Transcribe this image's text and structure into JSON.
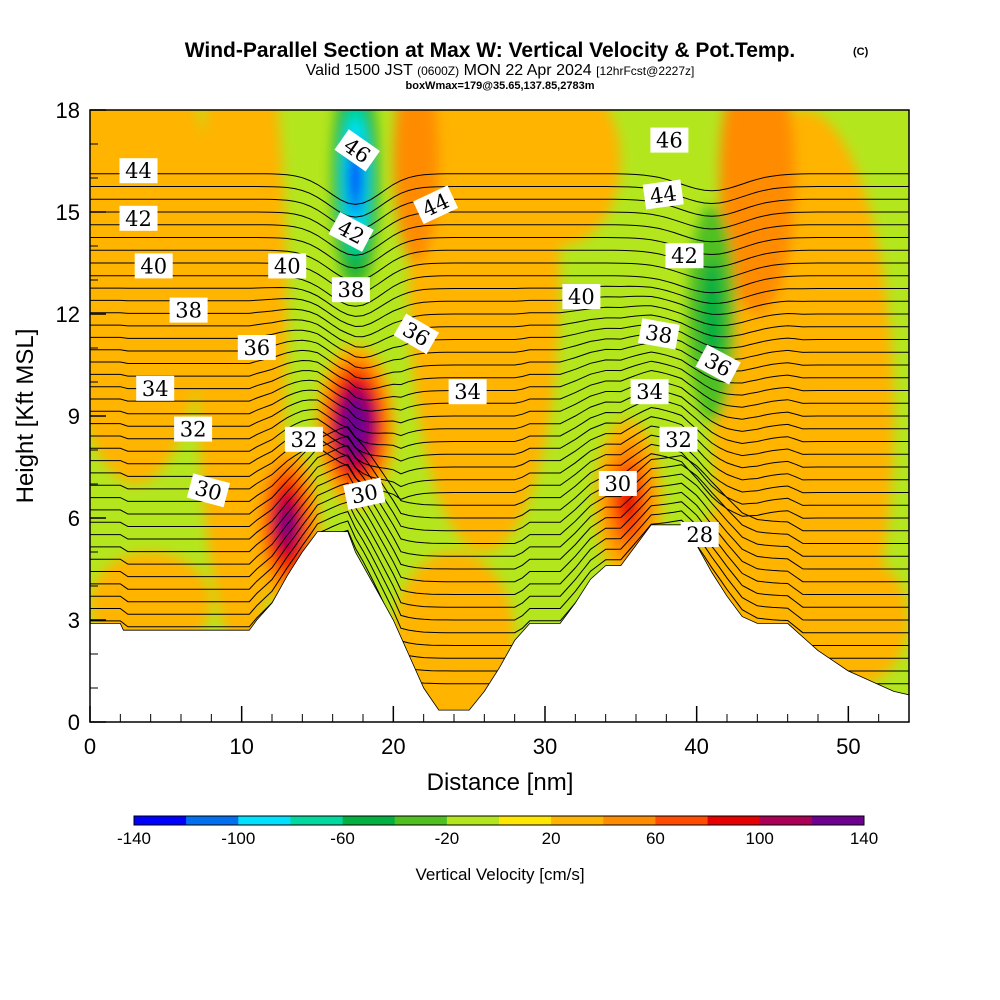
{
  "chart_data": {
    "type": "contour",
    "title": "Wind-Parallel Section at Max W: Vertical Velocity & Pot.Temp.",
    "copyright_mark": "(C)",
    "subtitle_parts": [
      "Valid 1500 JST",
      "(0600Z)",
      "MON 22 Apr 2024",
      "[12hrFcst@2227z]"
    ],
    "subtitle2": "boxWmax=179@35.65,137.85,2783m",
    "xlabel": "Distance [nm]",
    "ylabel": "Height [Kft MSL]",
    "xlim": [
      0,
      54
    ],
    "ylim": [
      0,
      18
    ],
    "xticks": [
      "0",
      "10",
      "20",
      "30",
      "40",
      "50"
    ],
    "yticks": [
      "0",
      "3",
      "6",
      "9",
      "12",
      "15",
      "18"
    ],
    "colorbar": {
      "label": "Vertical Velocity [cm/s]",
      "ticks": [
        "-140",
        "-100",
        "-60",
        "-20",
        "20",
        "60",
        "100",
        "140"
      ],
      "levels": [
        -140,
        -120,
        -100,
        -80,
        -60,
        -40,
        -20,
        0,
        20,
        40,
        60,
        80,
        100,
        120,
        140
      ],
      "colors": [
        "#0000ff",
        "#0070f0",
        "#00e0ff",
        "#00d8a0",
        "#00b040",
        "#50c020",
        "#b4e61e",
        "#ffe600",
        "#ffb400",
        "#ff8c00",
        "#ff4c00",
        "#e60000",
        "#aa0055",
        "#6e0090"
      ]
    },
    "terrain_kft": [
      [
        0,
        2.9
      ],
      [
        2,
        2.9
      ],
      [
        2.2,
        2.7
      ],
      [
        10.5,
        2.7
      ],
      [
        11,
        3.0
      ],
      [
        12,
        3.5
      ],
      [
        13,
        4.3
      ],
      [
        14,
        5.0
      ],
      [
        15,
        5.6
      ],
      [
        17,
        5.6
      ],
      [
        17.5,
        5.0
      ],
      [
        18,
        4.6
      ],
      [
        19,
        3.8
      ],
      [
        20,
        3.0
      ],
      [
        21,
        2.0
      ],
      [
        22,
        1.0
      ],
      [
        23,
        0.35
      ],
      [
        25,
        0.35
      ],
      [
        26,
        0.9
      ],
      [
        27,
        1.6
      ],
      [
        28,
        2.4
      ],
      [
        29,
        2.9
      ],
      [
        31,
        2.9
      ],
      [
        32,
        3.5
      ],
      [
        33,
        4.2
      ],
      [
        34,
        4.6
      ],
      [
        35,
        4.6
      ],
      [
        36,
        5.2
      ],
      [
        37,
        5.8
      ],
      [
        39,
        5.8
      ],
      [
        40,
        5.2
      ],
      [
        41,
        4.4
      ],
      [
        42,
        3.7
      ],
      [
        43,
        3.1
      ],
      [
        44,
        2.9
      ],
      [
        46,
        2.9
      ],
      [
        47,
        2.5
      ],
      [
        48,
        2.1
      ],
      [
        49,
        1.8
      ],
      [
        50,
        1.5
      ],
      [
        51,
        1.3
      ],
      [
        52,
        1.1
      ],
      [
        53,
        0.9
      ],
      [
        54,
        0.8
      ]
    ],
    "w_features": [
      {
        "name": "updraft_main",
        "x": 17.5,
        "y": 8.7,
        "w_cms": 179
      },
      {
        "name": "updraft_west",
        "x": 13,
        "y": 5.8,
        "w_cms": 120
      },
      {
        "name": "updraft_east",
        "x": 35.5,
        "y": 6.5,
        "w_cms": 80
      },
      {
        "name": "downdraft_upper",
        "x": 17.5,
        "y": 16,
        "w_cms": -120
      },
      {
        "name": "downdraft_east",
        "x": 41,
        "y": 12,
        "w_cms": -50
      }
    ],
    "theta_labels": [
      {
        "text": "44",
        "x": 3.2,
        "y": 16.2,
        "rot": 0
      },
      {
        "text": "42",
        "x": 3.2,
        "y": 14.8,
        "rot": 0
      },
      {
        "text": "40",
        "x": 4.2,
        "y": 13.4,
        "rot": 0
      },
      {
        "text": "38",
        "x": 6.5,
        "y": 12.1,
        "rot": 0
      },
      {
        "text": "36",
        "x": 11,
        "y": 11.0,
        "rot": 0
      },
      {
        "text": "34",
        "x": 4.3,
        "y": 9.8,
        "rot": 0
      },
      {
        "text": "32",
        "x": 6.8,
        "y": 8.6,
        "rot": 0
      },
      {
        "text": "30",
        "x": 7.8,
        "y": 6.8,
        "rot": 15
      },
      {
        "text": "46",
        "x": 17.6,
        "y": 16.8,
        "rot": 35
      },
      {
        "text": "44",
        "x": 22.8,
        "y": 15.2,
        "rot": -25
      },
      {
        "text": "42",
        "x": 17.2,
        "y": 14.4,
        "rot": 28
      },
      {
        "text": "40",
        "x": 13.0,
        "y": 13.4,
        "rot": 0
      },
      {
        "text": "38",
        "x": 17.2,
        "y": 12.7,
        "rot": 0
      },
      {
        "text": "36",
        "x": 21.5,
        "y": 11.4,
        "rot": 30
      },
      {
        "text": "32",
        "x": 14.1,
        "y": 8.3,
        "rot": 0
      },
      {
        "text": "30",
        "x": 18.1,
        "y": 6.7,
        "rot": -12
      },
      {
        "text": "34",
        "x": 24.9,
        "y": 9.7,
        "rot": 0
      },
      {
        "text": "40",
        "x": 32.4,
        "y": 12.5,
        "rot": 0
      },
      {
        "text": "46",
        "x": 38.2,
        "y": 17.1,
        "rot": 0
      },
      {
        "text": "44",
        "x": 37.8,
        "y": 15.5,
        "rot": -8
      },
      {
        "text": "42",
        "x": 39.2,
        "y": 13.7,
        "rot": 0
      },
      {
        "text": "38",
        "x": 37.5,
        "y": 11.4,
        "rot": 10
      },
      {
        "text": "36",
        "x": 41.4,
        "y": 10.5,
        "rot": 28
      },
      {
        "text": "34",
        "x": 36.9,
        "y": 9.7,
        "rot": 0
      },
      {
        "text": "32",
        "x": 38.8,
        "y": 8.3,
        "rot": 0
      },
      {
        "text": "30",
        "x": 34.8,
        "y": 7.0,
        "rot": 0
      },
      {
        "text": "28",
        "x": 40.2,
        "y": 5.5,
        "rot": 0
      }
    ]
  }
}
